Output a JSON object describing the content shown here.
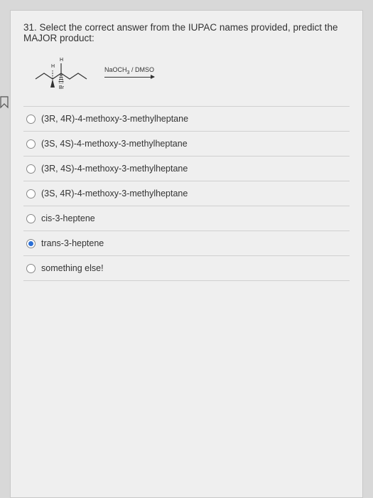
{
  "question": {
    "number": "31.",
    "text": "Select the correct answer from the IUPAC names provided, predict the MAJOR product:"
  },
  "reagent": {
    "top": "NaOCH",
    "sub": "3",
    "solvent": " / DMSO"
  },
  "structure_labels": {
    "h": "H",
    "br": "Br"
  },
  "options": [
    {
      "label": "(3R, 4R)-4-methoxy-3-methylheptane",
      "checked": false
    },
    {
      "label": "(3S, 4S)-4-methoxy-3-methylheptane",
      "checked": false
    },
    {
      "label": "(3R, 4S)-4-methoxy-3-methylheptane",
      "checked": false
    },
    {
      "label": "(3S, 4R)-4-methoxy-3-methylheptane",
      "checked": false
    },
    {
      "label": "cis-3-heptene",
      "checked": false
    },
    {
      "label": "trans-3-heptene",
      "checked": true
    },
    {
      "label": "something else!",
      "checked": false
    }
  ]
}
